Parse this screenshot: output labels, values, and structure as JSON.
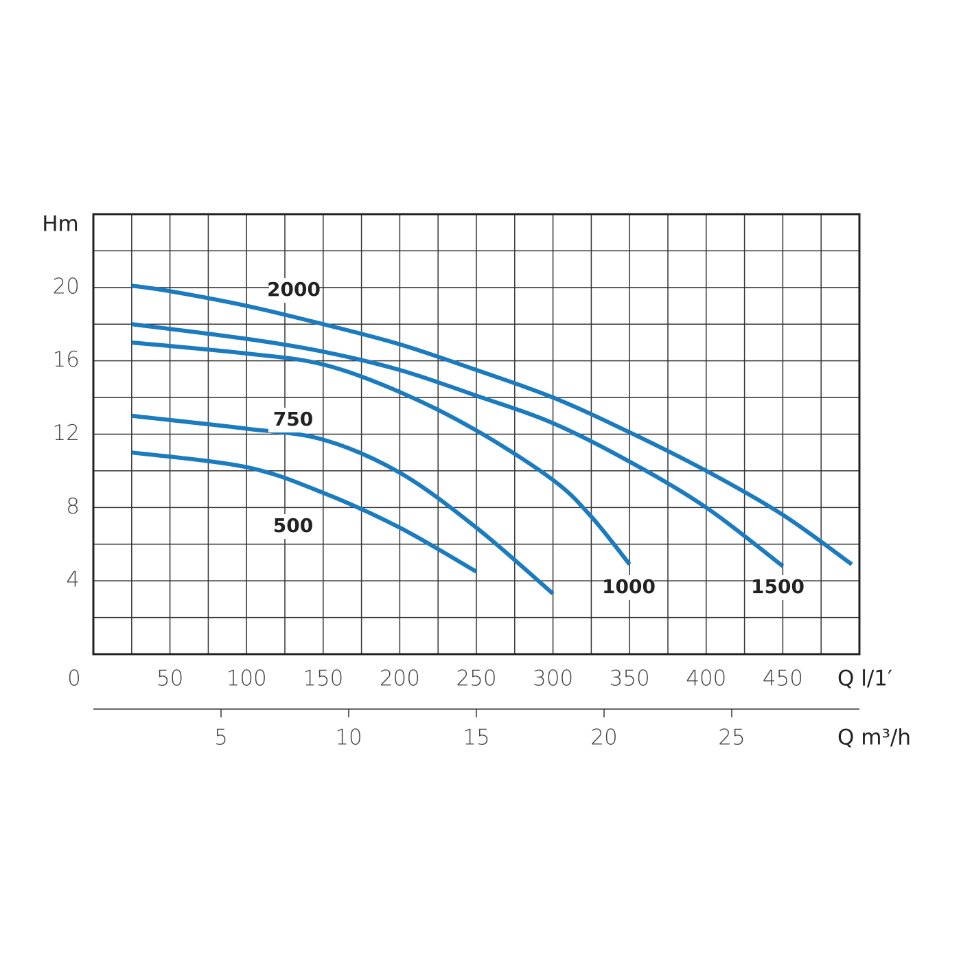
{
  "chart_data": {
    "type": "line",
    "y_label": "Hm",
    "x_label": "Q l/1′",
    "x2_label": "Q m³/h",
    "xlim": [
      0,
      500
    ],
    "xticks": [
      0,
      50,
      100,
      150,
      200,
      250,
      300,
      350,
      400,
      450
    ],
    "x2lim": [
      0,
      30
    ],
    "x2ticks": [
      5,
      10,
      15,
      20,
      25
    ],
    "ylim": [
      0,
      24
    ],
    "yticks": [
      4,
      8,
      12,
      16,
      20
    ],
    "xgrid": [
      25,
      50,
      75,
      100,
      125,
      150,
      175,
      200,
      225,
      250,
      275,
      300,
      325,
      350,
      375,
      400,
      425,
      450,
      475
    ],
    "ygrid": [
      2,
      4,
      6,
      8,
      10,
      12,
      14,
      16,
      18,
      20,
      22
    ],
    "grid": true,
    "series": [
      {
        "name": "2000",
        "color": "#1b7bbf",
        "x": [
          25,
          50,
          100,
          150,
          200,
          250,
          300,
          350,
          400,
          450,
          495
        ],
        "values": [
          20.1,
          19.8,
          19.0,
          18.0,
          16.9,
          15.5,
          14.0,
          12.1,
          10.0,
          7.6,
          4.9
        ]
      },
      {
        "name": "1500",
        "color": "#1b7bbf",
        "x": [
          25,
          100,
          150,
          200,
          250,
          300,
          350,
          400,
          450
        ],
        "values": [
          18.0,
          17.2,
          16.5,
          15.5,
          14.1,
          12.6,
          10.5,
          8.0,
          4.8
        ]
      },
      {
        "name": "1000",
        "color": "#1b7bbf",
        "x": [
          25,
          100,
          150,
          200,
          250,
          300,
          325,
          350
        ],
        "values": [
          17.0,
          16.4,
          15.8,
          14.3,
          12.2,
          9.5,
          7.5,
          4.9
        ]
      },
      {
        "name": "750",
        "color": "#1b7bbf",
        "x": [
          25,
          100,
          150,
          200,
          250,
          300
        ],
        "values": [
          13.0,
          12.3,
          11.7,
          9.9,
          6.9,
          3.3
        ]
      },
      {
        "name": "500",
        "color": "#1b7bbf",
        "x": [
          25,
          100,
          150,
          200,
          250
        ],
        "values": [
          11.0,
          10.2,
          8.8,
          6.9,
          4.5
        ]
      }
    ]
  }
}
